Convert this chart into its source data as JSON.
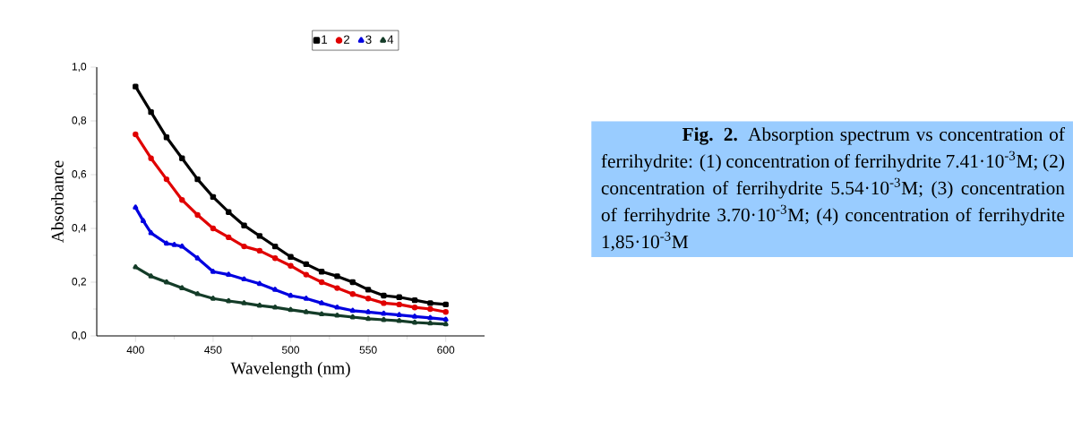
{
  "chart_data": {
    "type": "line",
    "xlabel": "Wavelength (nm)",
    "ylabel": "Absorbance",
    "xlim": [
      375,
      625
    ],
    "xticks": [
      400,
      450,
      500,
      550,
      600
    ],
    "ylim": [
      0,
      1.0
    ],
    "yticks": [
      {
        "value": 0,
        "label": "0,0"
      },
      {
        "value": 0.2,
        "label": "0,2"
      },
      {
        "value": 0.4,
        "label": "0,4"
      },
      {
        "value": 0.6,
        "label": "0,6"
      },
      {
        "value": 0.8,
        "label": "0,8"
      },
      {
        "value": 1.0,
        "label": "1,0"
      }
    ],
    "x": [
      400,
      410,
      420,
      430,
      440,
      450,
      460,
      470,
      480,
      490,
      500,
      510,
      520,
      530,
      540,
      550,
      560,
      570,
      580,
      590,
      600
    ],
    "series": [
      {
        "name": "1",
        "color": "#000000",
        "marker": "square",
        "values": [
          0.928,
          0.833,
          0.739,
          0.661,
          0.583,
          0.517,
          0.461,
          0.411,
          0.372,
          0.333,
          0.294,
          0.267,
          0.239,
          0.222,
          0.2,
          0.172,
          0.15,
          0.144,
          0.133,
          0.122,
          0.117
        ]
      },
      {
        "name": "2",
        "color": "#e00000",
        "marker": "circle",
        "values": [
          0.75,
          0.661,
          0.583,
          0.506,
          0.45,
          0.4,
          0.367,
          0.333,
          0.317,
          0.289,
          0.261,
          0.228,
          0.2,
          0.178,
          0.156,
          0.139,
          0.122,
          0.117,
          0.106,
          0.1,
          0.089
        ]
      },
      {
        "name": "3",
        "color": "#0000e0",
        "marker": "triangle",
        "x": [
          400,
          405,
          410,
          420,
          425,
          430,
          440,
          450,
          460,
          470,
          480,
          490,
          500,
          510,
          520,
          530,
          540,
          550,
          560,
          570,
          580,
          590,
          600
        ],
        "values": [
          0.478,
          0.428,
          0.383,
          0.344,
          0.339,
          0.333,
          0.289,
          0.239,
          0.228,
          0.211,
          0.194,
          0.172,
          0.15,
          0.139,
          0.122,
          0.106,
          0.094,
          0.089,
          0.083,
          0.078,
          0.072,
          0.067,
          0.061
        ]
      },
      {
        "name": "4",
        "color": "#143c28",
        "marker": "triangle",
        "values": [
          0.256,
          0.222,
          0.2,
          0.178,
          0.156,
          0.139,
          0.13,
          0.122,
          0.113,
          0.106,
          0.097,
          0.089,
          0.081,
          0.076,
          0.07,
          0.064,
          0.06,
          0.056,
          0.05,
          0.047,
          0.044
        ]
      }
    ],
    "legend": "top",
    "annotations": [
      "**Fig. 2.** Absorption spectrum vs concentration of ferrihydrite: (1) concentration of ferrihydrite 7.41·10$^{-3}$M; (2) concentration of ferrihydrite 5.54·10$^{-3}$M; (3) concentration of ferrihydrite 3.70·10$^{-3}$M; (4) concentration of ferrihydrite 1,85·10$^{-3}$M"
    ]
  }
}
